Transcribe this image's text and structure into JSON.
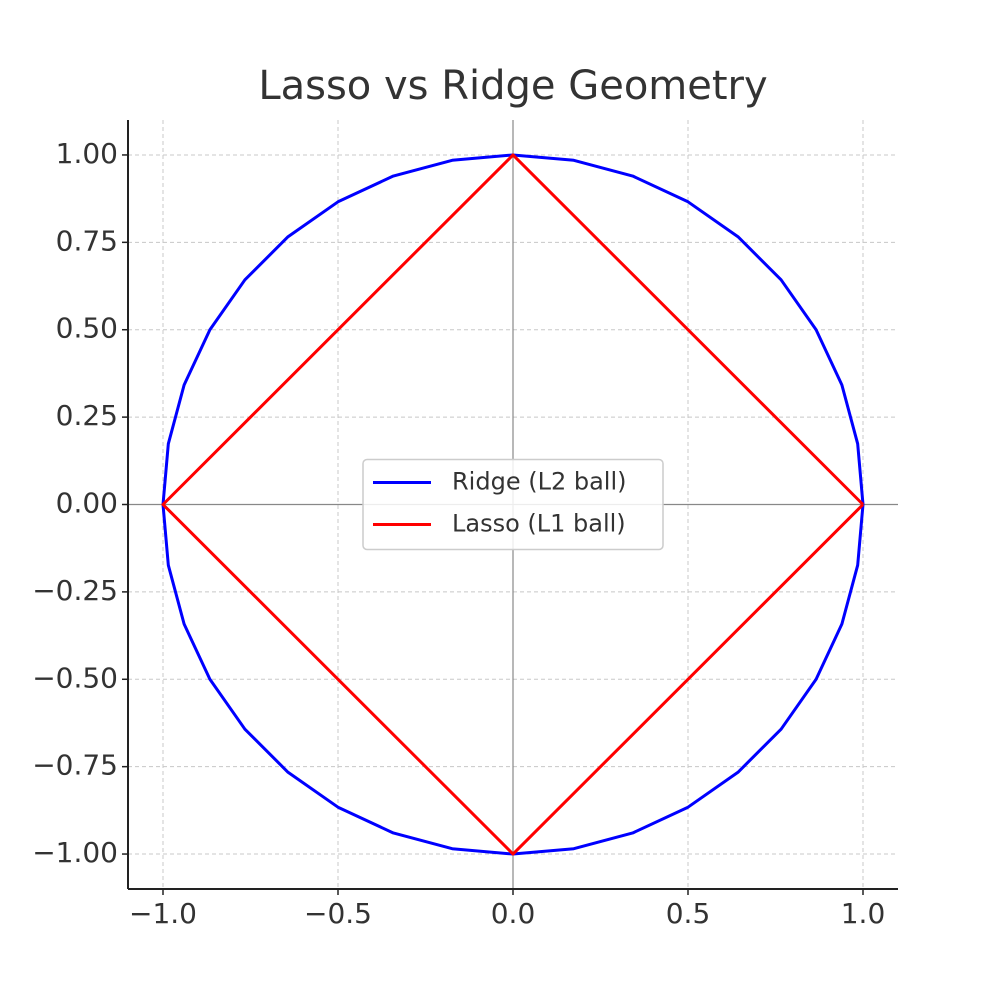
{
  "chart_data": {
    "type": "line",
    "title": "Lasso vs Ridge Geometry",
    "xlim": [
      -1.1,
      1.1
    ],
    "ylim": [
      -1.1,
      1.1
    ],
    "xticks": [
      {
        "value": -1.0,
        "label": "−1.0"
      },
      {
        "value": -0.5,
        "label": "−0.5"
      },
      {
        "value": 0,
        "label": "0.0"
      },
      0.5,
      {
        "value": 1.0,
        "label": "1.0"
      }
    ],
    "yticks": [
      {
        "value": -1.0,
        "label": "−1.00"
      },
      {
        "value": -0.75,
        "label": "−0.75"
      },
      {
        "value": -0.5,
        "label": "−0.50"
      },
      {
        "value": -0.25,
        "label": "−0.25"
      },
      {
        "value": 0,
        "label": "0.00"
      },
      {
        "value": 0.25,
        "label": "0.25"
      },
      {
        "value": 0.5,
        "label": "0.50"
      },
      {
        "value": 0.75,
        "label": "0.75"
      },
      {
        "value": 1.0,
        "label": "1.00"
      }
    ],
    "grid": true,
    "legend": "center",
    "series": [
      {
        "name": "Ridge (L2 ball)",
        "color": "#0000ff",
        "x": [
          1,
          0.9848,
          0.9397,
          0.866,
          0.766,
          0.6428,
          0.5,
          0.342,
          0.1736,
          0,
          -0.1736,
          -0.342,
          -0.5,
          -0.6428,
          -0.766,
          -0.866,
          -0.9397,
          -0.9848,
          -1,
          -0.9848,
          -0.9397,
          -0.866,
          -0.766,
          -0.6428,
          -0.5,
          -0.342,
          -0.1736,
          0,
          0.1736,
          0.342,
          0.5,
          0.6428,
          0.766,
          0.866,
          0.9397,
          0.9848,
          1
        ],
        "values": [
          0,
          0.1736,
          0.342,
          0.5,
          0.6428,
          0.766,
          0.866,
          0.9397,
          0.9848,
          1,
          0.9848,
          0.9397,
          0.866,
          0.766,
          0.6428,
          0.5,
          0.342,
          0.1736,
          0,
          -0.1736,
          -0.342,
          -0.5,
          -0.6428,
          -0.766,
          -0.866,
          -0.9397,
          -0.9848,
          -1,
          -0.9848,
          -0.9397,
          -0.866,
          -0.766,
          -0.6428,
          -0.5,
          -0.342,
          -0.1736,
          0
        ]
      },
      {
        "name": "Lasso (L1 ball)",
        "color": "#ff0000",
        "x": [
          1,
          0,
          -1,
          0,
          1
        ],
        "values": [
          0,
          1,
          0,
          -1,
          0
        ]
      }
    ]
  }
}
